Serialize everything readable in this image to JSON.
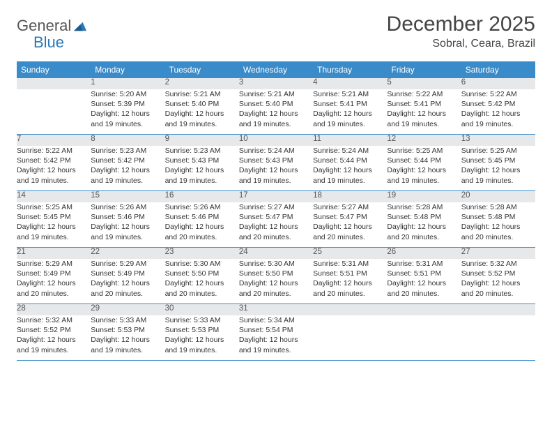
{
  "brand": {
    "part1": "General",
    "part2": "Blue"
  },
  "title": "December 2025",
  "location": "Sobral, Ceara, Brazil",
  "colors": {
    "header_bg": "#3a8bc9",
    "header_fg": "#ffffff",
    "daynum_bg": "#e7e8ea",
    "border": "#3a8bc9",
    "brand_gray": "#555555",
    "brand_blue": "#2a7ab8"
  },
  "weekdays": [
    "Sunday",
    "Monday",
    "Tuesday",
    "Wednesday",
    "Thursday",
    "Friday",
    "Saturday"
  ],
  "weeks": [
    [
      null,
      {
        "n": "1",
        "sr": "Sunrise: 5:20 AM",
        "ss": "Sunset: 5:39 PM",
        "d1": "Daylight: 12 hours",
        "d2": "and 19 minutes."
      },
      {
        "n": "2",
        "sr": "Sunrise: 5:21 AM",
        "ss": "Sunset: 5:40 PM",
        "d1": "Daylight: 12 hours",
        "d2": "and 19 minutes."
      },
      {
        "n": "3",
        "sr": "Sunrise: 5:21 AM",
        "ss": "Sunset: 5:40 PM",
        "d1": "Daylight: 12 hours",
        "d2": "and 19 minutes."
      },
      {
        "n": "4",
        "sr": "Sunrise: 5:21 AM",
        "ss": "Sunset: 5:41 PM",
        "d1": "Daylight: 12 hours",
        "d2": "and 19 minutes."
      },
      {
        "n": "5",
        "sr": "Sunrise: 5:22 AM",
        "ss": "Sunset: 5:41 PM",
        "d1": "Daylight: 12 hours",
        "d2": "and 19 minutes."
      },
      {
        "n": "6",
        "sr": "Sunrise: 5:22 AM",
        "ss": "Sunset: 5:42 PM",
        "d1": "Daylight: 12 hours",
        "d2": "and 19 minutes."
      }
    ],
    [
      {
        "n": "7",
        "sr": "Sunrise: 5:22 AM",
        "ss": "Sunset: 5:42 PM",
        "d1": "Daylight: 12 hours",
        "d2": "and 19 minutes."
      },
      {
        "n": "8",
        "sr": "Sunrise: 5:23 AM",
        "ss": "Sunset: 5:42 PM",
        "d1": "Daylight: 12 hours",
        "d2": "and 19 minutes."
      },
      {
        "n": "9",
        "sr": "Sunrise: 5:23 AM",
        "ss": "Sunset: 5:43 PM",
        "d1": "Daylight: 12 hours",
        "d2": "and 19 minutes."
      },
      {
        "n": "10",
        "sr": "Sunrise: 5:24 AM",
        "ss": "Sunset: 5:43 PM",
        "d1": "Daylight: 12 hours",
        "d2": "and 19 minutes."
      },
      {
        "n": "11",
        "sr": "Sunrise: 5:24 AM",
        "ss": "Sunset: 5:44 PM",
        "d1": "Daylight: 12 hours",
        "d2": "and 19 minutes."
      },
      {
        "n": "12",
        "sr": "Sunrise: 5:25 AM",
        "ss": "Sunset: 5:44 PM",
        "d1": "Daylight: 12 hours",
        "d2": "and 19 minutes."
      },
      {
        "n": "13",
        "sr": "Sunrise: 5:25 AM",
        "ss": "Sunset: 5:45 PM",
        "d1": "Daylight: 12 hours",
        "d2": "and 19 minutes."
      }
    ],
    [
      {
        "n": "14",
        "sr": "Sunrise: 5:25 AM",
        "ss": "Sunset: 5:45 PM",
        "d1": "Daylight: 12 hours",
        "d2": "and 19 minutes."
      },
      {
        "n": "15",
        "sr": "Sunrise: 5:26 AM",
        "ss": "Sunset: 5:46 PM",
        "d1": "Daylight: 12 hours",
        "d2": "and 19 minutes."
      },
      {
        "n": "16",
        "sr": "Sunrise: 5:26 AM",
        "ss": "Sunset: 5:46 PM",
        "d1": "Daylight: 12 hours",
        "d2": "and 20 minutes."
      },
      {
        "n": "17",
        "sr": "Sunrise: 5:27 AM",
        "ss": "Sunset: 5:47 PM",
        "d1": "Daylight: 12 hours",
        "d2": "and 20 minutes."
      },
      {
        "n": "18",
        "sr": "Sunrise: 5:27 AM",
        "ss": "Sunset: 5:47 PM",
        "d1": "Daylight: 12 hours",
        "d2": "and 20 minutes."
      },
      {
        "n": "19",
        "sr": "Sunrise: 5:28 AM",
        "ss": "Sunset: 5:48 PM",
        "d1": "Daylight: 12 hours",
        "d2": "and 20 minutes."
      },
      {
        "n": "20",
        "sr": "Sunrise: 5:28 AM",
        "ss": "Sunset: 5:48 PM",
        "d1": "Daylight: 12 hours",
        "d2": "and 20 minutes."
      }
    ],
    [
      {
        "n": "21",
        "sr": "Sunrise: 5:29 AM",
        "ss": "Sunset: 5:49 PM",
        "d1": "Daylight: 12 hours",
        "d2": "and 20 minutes."
      },
      {
        "n": "22",
        "sr": "Sunrise: 5:29 AM",
        "ss": "Sunset: 5:49 PM",
        "d1": "Daylight: 12 hours",
        "d2": "and 20 minutes."
      },
      {
        "n": "23",
        "sr": "Sunrise: 5:30 AM",
        "ss": "Sunset: 5:50 PM",
        "d1": "Daylight: 12 hours",
        "d2": "and 20 minutes."
      },
      {
        "n": "24",
        "sr": "Sunrise: 5:30 AM",
        "ss": "Sunset: 5:50 PM",
        "d1": "Daylight: 12 hours",
        "d2": "and 20 minutes."
      },
      {
        "n": "25",
        "sr": "Sunrise: 5:31 AM",
        "ss": "Sunset: 5:51 PM",
        "d1": "Daylight: 12 hours",
        "d2": "and 20 minutes."
      },
      {
        "n": "26",
        "sr": "Sunrise: 5:31 AM",
        "ss": "Sunset: 5:51 PM",
        "d1": "Daylight: 12 hours",
        "d2": "and 20 minutes."
      },
      {
        "n": "27",
        "sr": "Sunrise: 5:32 AM",
        "ss": "Sunset: 5:52 PM",
        "d1": "Daylight: 12 hours",
        "d2": "and 20 minutes."
      }
    ],
    [
      {
        "n": "28",
        "sr": "Sunrise: 5:32 AM",
        "ss": "Sunset: 5:52 PM",
        "d1": "Daylight: 12 hours",
        "d2": "and 19 minutes."
      },
      {
        "n": "29",
        "sr": "Sunrise: 5:33 AM",
        "ss": "Sunset: 5:53 PM",
        "d1": "Daylight: 12 hours",
        "d2": "and 19 minutes."
      },
      {
        "n": "30",
        "sr": "Sunrise: 5:33 AM",
        "ss": "Sunset: 5:53 PM",
        "d1": "Daylight: 12 hours",
        "d2": "and 19 minutes."
      },
      {
        "n": "31",
        "sr": "Sunrise: 5:34 AM",
        "ss": "Sunset: 5:54 PM",
        "d1": "Daylight: 12 hours",
        "d2": "and 19 minutes."
      },
      null,
      null,
      null
    ]
  ]
}
